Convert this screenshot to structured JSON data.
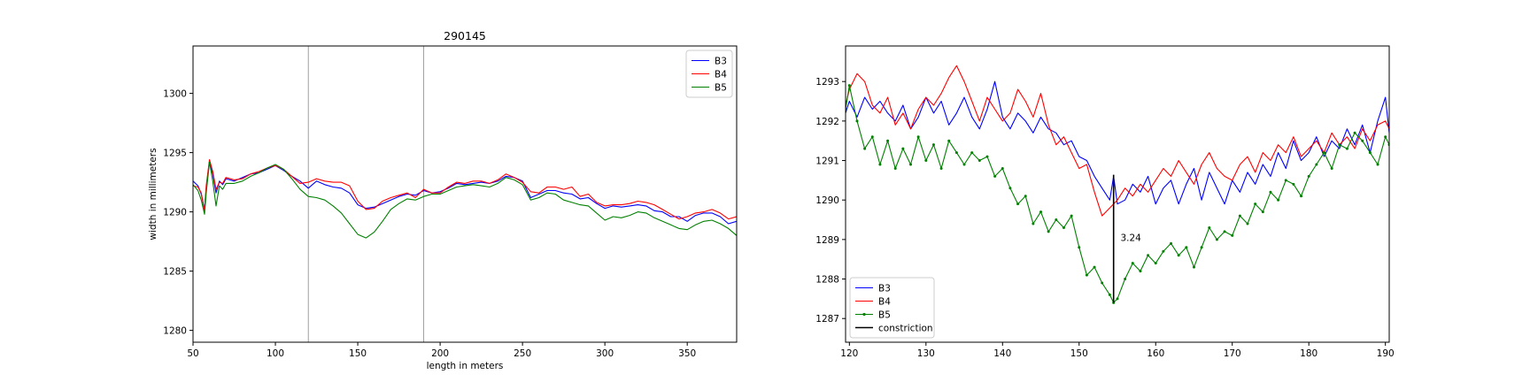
{
  "chart_data": [
    {
      "type": "line",
      "title": "290145",
      "xlabel": "length in meters",
      "ylabel": "width in millimeters",
      "xlim": [
        50,
        380
      ],
      "ylim": [
        1279,
        1304
      ],
      "xticks": [
        50,
        100,
        150,
        200,
        250,
        300,
        350
      ],
      "yticks": [
        1280,
        1285,
        1290,
        1295,
        1300
      ],
      "grid": false,
      "legend_position": "top-right",
      "vlines": [
        120,
        190
      ],
      "series": [
        {
          "name": "B3",
          "color": "#0000ff",
          "x": [
            50,
            53,
            55,
            57,
            58,
            60,
            62,
            64,
            66,
            68,
            70,
            75,
            80,
            85,
            90,
            95,
            100,
            105,
            110,
            115,
            120,
            125,
            130,
            135,
            140,
            145,
            150,
            155,
            160,
            165,
            170,
            175,
            180,
            185,
            190,
            195,
            200,
            205,
            210,
            215,
            220,
            225,
            230,
            235,
            240,
            245,
            250,
            255,
            260,
            265,
            270,
            275,
            280,
            285,
            290,
            295,
            300,
            305,
            310,
            315,
            320,
            325,
            330,
            335,
            340,
            345,
            350,
            355,
            360,
            365,
            370,
            375,
            380
          ],
          "y": [
            1292.6,
            1292.2,
            1291.5,
            1290.2,
            1292.0,
            1294.3,
            1293.2,
            1291.6,
            1292.6,
            1292.3,
            1292.8,
            1292.6,
            1292.9,
            1293.2,
            1293.3,
            1293.6,
            1293.9,
            1293.5,
            1293.0,
            1292.6,
            1292.0,
            1292.6,
            1292.3,
            1292.1,
            1292.0,
            1291.6,
            1290.6,
            1290.3,
            1290.4,
            1290.7,
            1291.0,
            1291.3,
            1291.5,
            1291.4,
            1291.8,
            1291.6,
            1291.7,
            1292.0,
            1292.4,
            1292.3,
            1292.4,
            1292.5,
            1292.4,
            1292.6,
            1293.0,
            1292.9,
            1292.6,
            1291.2,
            1291.5,
            1291.8,
            1291.8,
            1291.6,
            1291.5,
            1291.1,
            1291.2,
            1290.7,
            1290.3,
            1290.5,
            1290.4,
            1290.5,
            1290.6,
            1290.5,
            1290.1,
            1290.0,
            1289.6,
            1289.6,
            1289.2,
            1289.7,
            1289.9,
            1289.9,
            1289.6,
            1289.0,
            1289.2
          ]
        },
        {
          "name": "B4",
          "color": "#ff0000",
          "x": [
            50,
            53,
            55,
            57,
            58,
            60,
            62,
            64,
            66,
            68,
            70,
            75,
            80,
            85,
            90,
            95,
            100,
            105,
            110,
            115,
            120,
            125,
            130,
            135,
            140,
            145,
            150,
            155,
            160,
            165,
            170,
            175,
            180,
            185,
            190,
            195,
            200,
            205,
            210,
            215,
            220,
            225,
            230,
            235,
            240,
            245,
            250,
            255,
            260,
            265,
            270,
            275,
            280,
            285,
            290,
            295,
            300,
            305,
            310,
            315,
            320,
            325,
            330,
            335,
            340,
            345,
            350,
            355,
            360,
            365,
            370,
            375,
            380
          ],
          "y": [
            1292.2,
            1292.1,
            1291.6,
            1290.1,
            1292.2,
            1294.4,
            1293.4,
            1291.9,
            1292.5,
            1292.4,
            1292.9,
            1292.7,
            1292.8,
            1293.2,
            1293.4,
            1293.7,
            1293.9,
            1293.6,
            1293.0,
            1292.4,
            1292.5,
            1292.8,
            1292.6,
            1292.5,
            1292.5,
            1292.2,
            1290.9,
            1290.2,
            1290.3,
            1290.9,
            1291.2,
            1291.4,
            1291.6,
            1291.2,
            1291.9,
            1291.6,
            1291.6,
            1292.1,
            1292.5,
            1292.4,
            1292.6,
            1292.6,
            1292.4,
            1292.7,
            1293.2,
            1292.9,
            1292.5,
            1291.7,
            1291.6,
            1292.1,
            1292.1,
            1291.9,
            1292.1,
            1291.3,
            1291.5,
            1290.8,
            1290.5,
            1290.6,
            1290.6,
            1290.7,
            1290.9,
            1290.8,
            1290.6,
            1290.2,
            1289.8,
            1289.4,
            1289.6,
            1289.9,
            1290.0,
            1290.2,
            1289.9,
            1289.4,
            1289.6
          ]
        },
        {
          "name": "B5",
          "color": "#008000",
          "x": [
            50,
            53,
            55,
            57,
            58,
            60,
            62,
            64,
            66,
            68,
            70,
            75,
            80,
            85,
            90,
            95,
            100,
            105,
            110,
            115,
            120,
            125,
            130,
            135,
            140,
            145,
            150,
            155,
            160,
            165,
            170,
            175,
            180,
            185,
            190,
            195,
            200,
            205,
            210,
            215,
            220,
            225,
            230,
            235,
            240,
            245,
            250,
            255,
            260,
            265,
            270,
            275,
            280,
            285,
            290,
            295,
            300,
            305,
            310,
            315,
            320,
            325,
            330,
            335,
            340,
            345,
            350,
            355,
            360,
            365,
            370,
            375,
            380
          ],
          "y": [
            1292.3,
            1291.8,
            1291.0,
            1289.8,
            1291.6,
            1294.2,
            1292.6,
            1290.5,
            1292.2,
            1291.9,
            1292.4,
            1292.4,
            1292.6,
            1293.0,
            1293.3,
            1293.7,
            1294.0,
            1293.6,
            1292.8,
            1291.9,
            1291.3,
            1291.2,
            1291.0,
            1290.5,
            1289.9,
            1289.0,
            1288.1,
            1287.8,
            1288.3,
            1289.2,
            1290.2,
            1290.7,
            1291.1,
            1291.0,
            1291.3,
            1291.5,
            1291.5,
            1291.8,
            1292.1,
            1292.2,
            1292.3,
            1292.2,
            1292.1,
            1292.4,
            1292.9,
            1292.7,
            1292.3,
            1291.0,
            1291.2,
            1291.6,
            1291.5,
            1291.0,
            1290.8,
            1290.6,
            1290.5,
            1289.9,
            1289.3,
            1289.6,
            1289.5,
            1289.7,
            1290.0,
            1289.9,
            1289.5,
            1289.2,
            1288.9,
            1288.6,
            1288.5,
            1288.9,
            1289.2,
            1289.3,
            1289.0,
            1288.6,
            1288.0
          ]
        }
      ]
    },
    {
      "type": "line",
      "title": "",
      "xlabel": "",
      "ylabel": "",
      "xlim": [
        119.5,
        190.5
      ],
      "ylim": [
        1286.4,
        1293.9
      ],
      "xticks": [
        120,
        130,
        140,
        150,
        160,
        170,
        180,
        190
      ],
      "yticks": [
        1287,
        1288,
        1289,
        1290,
        1291,
        1292,
        1293
      ],
      "grid": false,
      "legend_position": "bottom-left",
      "annotation": {
        "text": "3.24",
        "x": 155.4,
        "y": 1289.05
      },
      "series": [
        {
          "name": "B3",
          "color": "#0000ff",
          "x": [
            119.5,
            120,
            121,
            122,
            123,
            124,
            125,
            126,
            127,
            128,
            129,
            130,
            131,
            132,
            133,
            134,
            135,
            136,
            137,
            138,
            139,
            140,
            141,
            142,
            143,
            144,
            145,
            146,
            147,
            148,
            149,
            150,
            151,
            152,
            153,
            154,
            154.5,
            155,
            156,
            157,
            158,
            159,
            160,
            161,
            162,
            163,
            164,
            165,
            166,
            167,
            168,
            169,
            170,
            171,
            172,
            173,
            174,
            175,
            176,
            177,
            178,
            179,
            180,
            181,
            182,
            183,
            184,
            185,
            186,
            187,
            188,
            189,
            190,
            190.5
          ],
          "y": [
            1292.2,
            1292.5,
            1292.1,
            1292.6,
            1292.3,
            1292.5,
            1292.2,
            1292.0,
            1292.4,
            1291.8,
            1292.1,
            1292.6,
            1292.2,
            1292.5,
            1291.9,
            1292.2,
            1292.6,
            1292.1,
            1291.8,
            1292.3,
            1293.0,
            1292.1,
            1291.8,
            1292.2,
            1292.0,
            1291.7,
            1292.1,
            1291.8,
            1291.7,
            1291.4,
            1291.5,
            1291.1,
            1291.0,
            1290.6,
            1290.3,
            1290.0,
            1290.6,
            1289.9,
            1290.0,
            1290.4,
            1290.2,
            1290.6,
            1289.9,
            1290.3,
            1290.5,
            1289.9,
            1290.4,
            1290.8,
            1290.0,
            1290.7,
            1290.3,
            1289.9,
            1290.5,
            1290.2,
            1290.7,
            1290.4,
            1290.9,
            1290.6,
            1291.2,
            1290.8,
            1291.5,
            1291.0,
            1291.2,
            1291.6,
            1291.1,
            1291.5,
            1291.3,
            1291.8,
            1291.4,
            1291.9,
            1291.2,
            1292.0,
            1292.6,
            1291.7
          ]
        },
        {
          "name": "B4",
          "color": "#ff0000",
          "x": [
            119.5,
            120,
            121,
            122,
            123,
            124,
            125,
            126,
            127,
            128,
            129,
            130,
            131,
            132,
            133,
            134,
            135,
            136,
            137,
            138,
            139,
            140,
            141,
            142,
            143,
            144,
            145,
            146,
            147,
            148,
            149,
            150,
            151,
            152,
            153,
            154,
            155,
            156,
            157,
            158,
            159,
            160,
            161,
            162,
            163,
            164,
            165,
            166,
            167,
            168,
            169,
            170,
            171,
            172,
            173,
            174,
            175,
            176,
            177,
            178,
            179,
            180,
            181,
            182,
            183,
            184,
            185,
            186,
            187,
            188,
            189,
            190,
            190.5
          ],
          "y": [
            1292.4,
            1292.8,
            1293.2,
            1293.0,
            1292.4,
            1292.2,
            1292.6,
            1291.9,
            1292.2,
            1291.8,
            1292.3,
            1292.6,
            1292.4,
            1292.7,
            1293.1,
            1293.4,
            1293.0,
            1292.5,
            1292.0,
            1292.6,
            1292.3,
            1292.0,
            1292.2,
            1292.8,
            1292.5,
            1292.1,
            1292.7,
            1291.9,
            1291.4,
            1291.6,
            1291.2,
            1290.8,
            1290.9,
            1290.2,
            1289.6,
            1289.8,
            1290.0,
            1290.3,
            1290.1,
            1290.4,
            1290.2,
            1290.5,
            1290.8,
            1290.6,
            1291.0,
            1290.7,
            1290.4,
            1290.9,
            1291.2,
            1290.8,
            1290.6,
            1290.5,
            1290.9,
            1291.1,
            1290.7,
            1291.2,
            1291.0,
            1291.4,
            1291.2,
            1291.6,
            1291.1,
            1291.3,
            1291.5,
            1291.2,
            1291.7,
            1291.4,
            1291.6,
            1291.3,
            1291.8,
            1291.5,
            1291.9,
            1292.0,
            1291.8
          ]
        },
        {
          "name": "B5",
          "color": "#008000",
          "marker": "dot",
          "x": [
            119.5,
            120,
            121,
            122,
            123,
            124,
            125,
            126,
            127,
            128,
            129,
            130,
            131,
            132,
            133,
            134,
            135,
            136,
            137,
            138,
            139,
            140,
            141,
            142,
            143,
            144,
            145,
            146,
            147,
            148,
            149,
            150,
            151,
            152,
            153,
            154,
            154.5,
            155,
            156,
            157,
            158,
            159,
            160,
            161,
            162,
            163,
            164,
            165,
            166,
            167,
            168,
            169,
            170,
            171,
            172,
            173,
            174,
            175,
            176,
            177,
            178,
            179,
            180,
            181,
            182,
            183,
            184,
            185,
            186,
            187,
            188,
            189,
            190,
            190.5
          ],
          "y": [
            1292.3,
            1292.9,
            1292.0,
            1291.3,
            1291.6,
            1290.9,
            1291.5,
            1290.8,
            1291.3,
            1290.9,
            1291.6,
            1291.0,
            1291.4,
            1290.8,
            1291.5,
            1291.2,
            1290.9,
            1291.2,
            1291.0,
            1291.1,
            1290.6,
            1290.8,
            1290.3,
            1289.9,
            1290.1,
            1289.4,
            1289.7,
            1289.2,
            1289.5,
            1289.3,
            1289.6,
            1288.8,
            1288.1,
            1288.3,
            1287.9,
            1287.6,
            1287.4,
            1287.5,
            1288.0,
            1288.4,
            1288.2,
            1288.6,
            1288.4,
            1288.7,
            1288.9,
            1288.6,
            1288.8,
            1288.3,
            1288.8,
            1289.3,
            1289.0,
            1289.2,
            1289.1,
            1289.6,
            1289.4,
            1289.9,
            1289.7,
            1290.2,
            1290.0,
            1290.5,
            1290.4,
            1290.1,
            1290.6,
            1290.9,
            1291.2,
            1290.8,
            1291.4,
            1291.3,
            1291.7,
            1291.5,
            1291.2,
            1290.9,
            1291.6,
            1291.4
          ]
        },
        {
          "name": "constriction",
          "color": "#000000",
          "x": [
            154.5,
            154.5
          ],
          "y": [
            1287.4,
            1290.64
          ]
        }
      ]
    }
  ]
}
